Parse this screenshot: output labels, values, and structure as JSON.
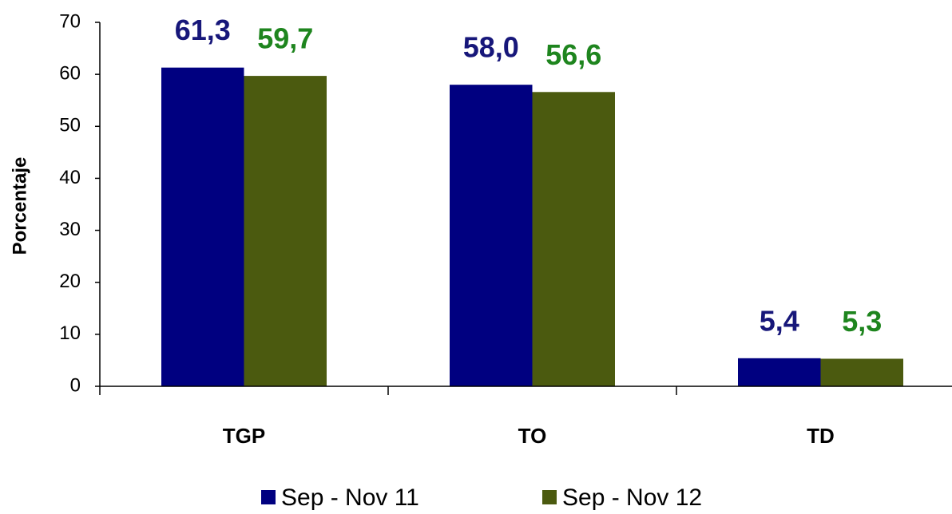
{
  "chart_data": {
    "type": "bar",
    "y_label": "Porcentaje",
    "categories": [
      "TGP",
      "TO",
      "TD"
    ],
    "series": [
      {
        "name": "Sep - Nov 11",
        "color": "#000080",
        "label_color": "#17177a",
        "values": [
          61.3,
          58.0,
          5.4
        ],
        "value_labels": [
          "61,3",
          "58,0",
          "5,4"
        ]
      },
      {
        "name": "Sep - Nov 12",
        "color": "#4b5a0f",
        "label_color": "#1e851e",
        "values": [
          59.7,
          56.6,
          5.3
        ],
        "value_labels": [
          "59,7",
          "56,6",
          "5,3"
        ]
      }
    ],
    "ylim": [
      0,
      70
    ],
    "yticks": [
      0,
      10,
      20,
      30,
      40,
      50,
      60,
      70
    ],
    "legend": "bottom"
  }
}
